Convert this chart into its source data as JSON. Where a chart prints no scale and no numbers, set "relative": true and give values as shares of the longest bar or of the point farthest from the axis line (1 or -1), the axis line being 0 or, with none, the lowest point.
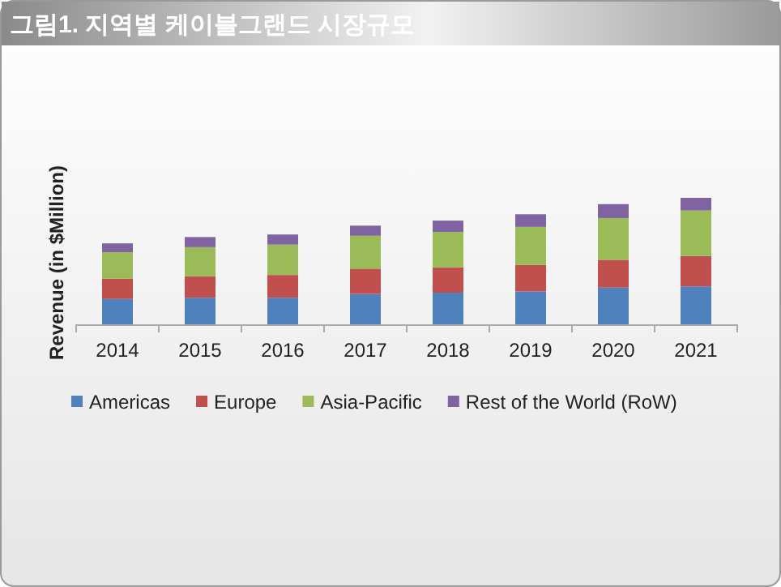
{
  "chart_data": {
    "type": "bar",
    "title": "그림1. 지역별 케이블그랜드 시장규모",
    "ylabel": "Revenue (in $Million)",
    "relative": true,
    "stacked": true,
    "legend": "bottom",
    "categories": [
      "2014",
      "2015",
      "2016",
      "2017",
      "2018",
      "2019",
      "2020",
      "2021"
    ],
    "series": [
      {
        "name": "Americas",
        "color": "#4f81bd",
        "values": [
          0.2,
          0.21,
          0.21,
          0.24,
          0.25,
          0.26,
          0.29,
          0.3
        ]
      },
      {
        "name": "Europe",
        "color": "#c0504d",
        "values": [
          0.16,
          0.17,
          0.18,
          0.2,
          0.2,
          0.21,
          0.22,
          0.24
        ]
      },
      {
        "name": "Asia-Pacific",
        "color": "#9bbb59",
        "values": [
          0.21,
          0.23,
          0.24,
          0.26,
          0.28,
          0.3,
          0.33,
          0.36
        ]
      },
      {
        "name": "Rest of the World (RoW)",
        "color": "#8064a2",
        "values": [
          0.07,
          0.08,
          0.08,
          0.08,
          0.09,
          0.1,
          0.11,
          0.1
        ]
      }
    ]
  }
}
